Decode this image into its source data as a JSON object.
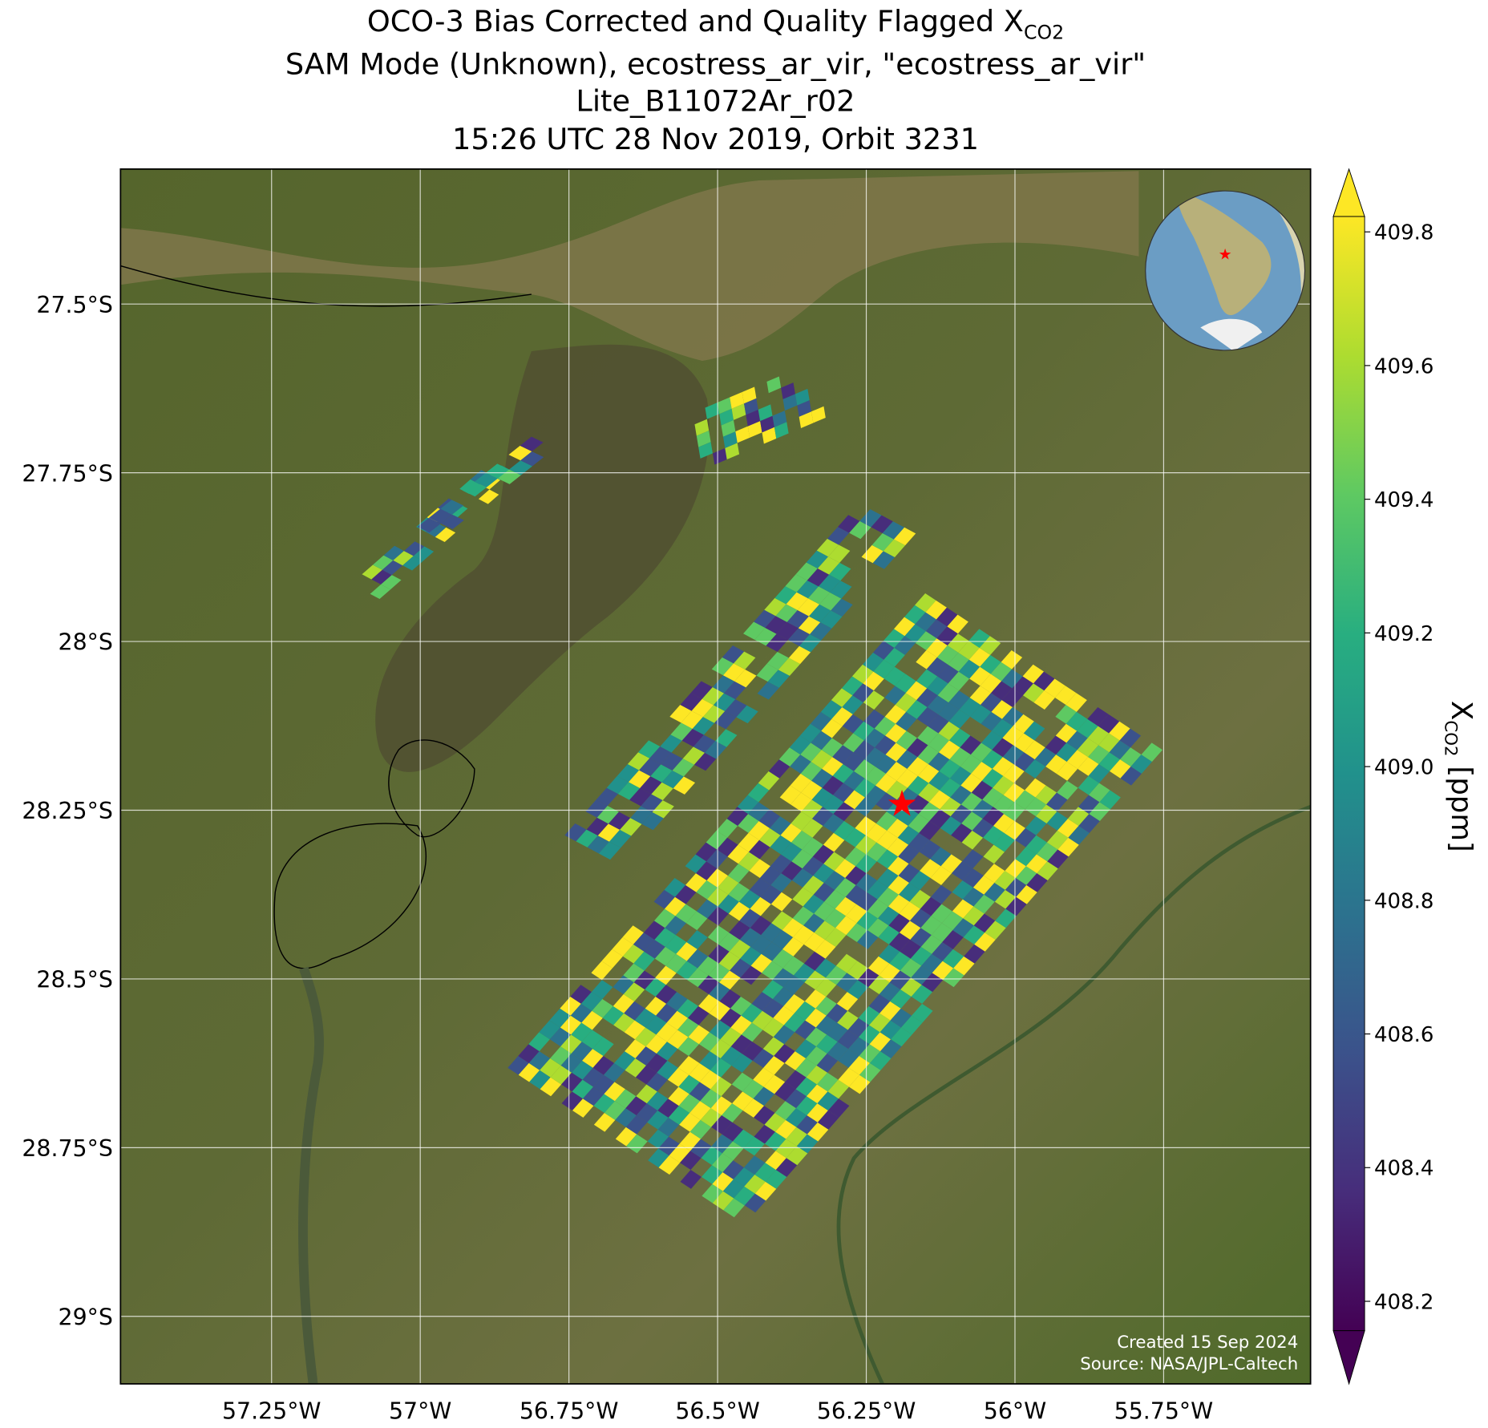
{
  "chart_data": {
    "type": "map",
    "title": {
      "lines": [
        "OCO-3 Bias Corrected and Quality Flagged X",
        "SAM Mode (Unknown), ecostress_ar_vir, \"ecostress_ar_vir\"",
        "Lite_B11072Ar_r02",
        "15:26 UTC 28 Nov 2019, Orbit 3231"
      ],
      "subscript": "CO2"
    },
    "xlim": [
      -57.504,
      -55.503
    ],
    "ylim": [
      -29.1,
      -27.3
    ],
    "xticks": [
      {
        "value": -57.25,
        "label": "57.25°W"
      },
      {
        "value": -57,
        "label": "57°W"
      },
      {
        "value": -56.75,
        "label": "56.75°W"
      },
      {
        "value": -56.5,
        "label": "56.5°W"
      },
      {
        "value": -56.25,
        "label": "56.25°W"
      },
      {
        "value": -56,
        "label": "56°W"
      },
      {
        "value": -55.75,
        "label": "55.75°W"
      }
    ],
    "yticks": [
      {
        "value": -27.5,
        "label": "27.5°S"
      },
      {
        "value": -27.75,
        "label": "27.75°S"
      },
      {
        "value": -28,
        "label": "28°S"
      },
      {
        "value": -28.25,
        "label": "28.25°S"
      },
      {
        "value": -28.5,
        "label": "28.5°S"
      },
      {
        "value": -28.75,
        "label": "28.75°S"
      },
      {
        "value": -29,
        "label": "29°S"
      }
    ],
    "grid": true,
    "target": {
      "lon": -56.19,
      "lat": -28.24,
      "color": "#ff0000"
    },
    "colorbar": {
      "label": "X",
      "label_subscript": "CO2",
      "label_unit": "[ppm]",
      "clim": [
        408.156,
        409.823
      ],
      "ticks": [
        408.2,
        408.4,
        408.6,
        408.8,
        409.0,
        409.2,
        409.4,
        409.6,
        409.8
      ],
      "extend": "both",
      "colormap": "viridis"
    },
    "footer": [
      "Created 15 Sep 2024",
      "Source: NASA/JPL-Caltech"
    ]
  }
}
